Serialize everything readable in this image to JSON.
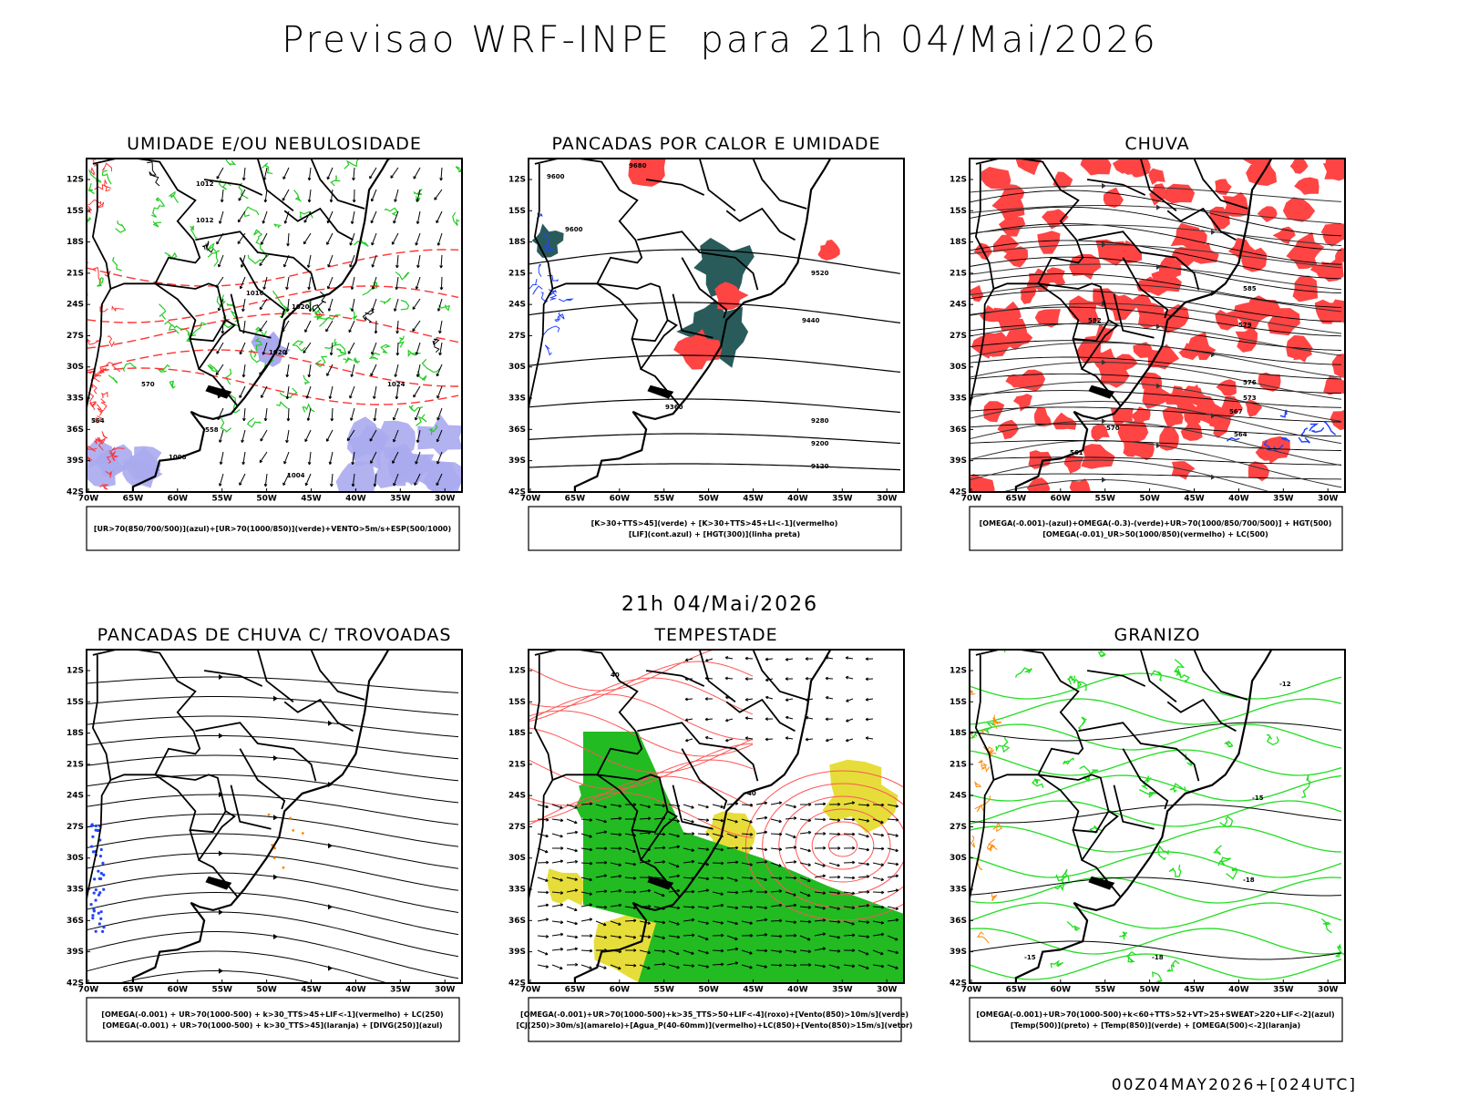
{
  "title": "Previsao WRF-INPE  para 21h 04/Mai/2026",
  "subtitle": "21h 04/Mai/2026",
  "footer": "00Z04MAY2026+[024UTC]",
  "axes": {
    "lat_ticks": [
      "12S",
      "15S",
      "18S",
      "21S",
      "24S",
      "27S",
      "30S",
      "33S",
      "36S",
      "39S",
      "42S"
    ],
    "lon_ticks": [
      "70W",
      "65W",
      "60W",
      "55W",
      "50W",
      "45W",
      "40W",
      "35W",
      "30W"
    ]
  },
  "panels": [
    {
      "title": "UMIDADE E/OU NEBULOSIDADE",
      "legend": [
        "[UR>70(850/700/500)](azul)+[UR>70(1000/850)](verde)+VENTO>5m/s+ESP(500/1000)"
      ],
      "contour_labels": [
        "1012",
        "1012",
        "1016",
        "1020",
        "1024",
        "1020",
        "1008",
        "1004",
        "570",
        "564",
        "558"
      ]
    },
    {
      "title": "PANCADAS POR CALOR E UMIDADE",
      "legend": [
        "[K>30+TTS>45](verde) + [K>30+TTS>45+LI<-1](vermelho)",
        "[LIF](cont.azul) + [HGT(300)](linha preta)"
      ],
      "contour_labels": [
        "9680",
        "9600",
        "9600",
        "9520",
        "9440",
        "9360",
        "9280",
        "9200",
        "9120"
      ]
    },
    {
      "title": "CHUVA",
      "legend": [
        "[OMEGA(-0.001)-(azul)+OMEGA(-0.3)-(verde)+UR>70(1000/850/700/500)] + HGT(500)",
        "[OMEGA(-0.01)_UR>50(1000/850)(vermelho) + LC(500)"
      ],
      "contour_labels": [
        "585",
        "582",
        "579",
        "576",
        "573",
        "570",
        "567",
        "564",
        "561"
      ]
    },
    {
      "title": "PANCADAS DE CHUVA C/ TROVOADAS",
      "legend": [
        "[OMEGA(-0.001) + UR>70(1000-500) + k>30_TTS>45+LIF<-1](vermelho) + LC(250)",
        "[OMEGA(-0.001) + UR>70(1000-500) + k>30_TTS>45](laranja) + [DIVG(250)](azul)"
      ],
      "contour_labels": []
    },
    {
      "title": "TEMPESTADE",
      "legend": [
        "[OMEGA(-0.001)+UR>70(1000-500)+k>35_TTS>50+LIF<-4](roxo)+[Vento(850)>10m/s](verde)",
        "[CJ(250)>30m/s](amarelo)+[Agua_P(40-60mm)](vermelho)+LC(850)+[Vento(850)>15m/s](vetor)"
      ],
      "contour_labels": [
        "40",
        "40"
      ]
    },
    {
      "title": "GRANIZO",
      "legend": [
        "[OMEGA(-0.001)+UR>70(1000-500)+k<60+TTS>52+VT>25+SWEAT>220+LIF<-2](azul)",
        "[Temp(500)](preto) + [Temp(850)](verde) + [OMEGA(500)<-2](laranja)"
      ],
      "contour_labels": [
        "-12",
        "-15",
        "-18",
        "-15",
        "-18"
      ]
    }
  ]
}
